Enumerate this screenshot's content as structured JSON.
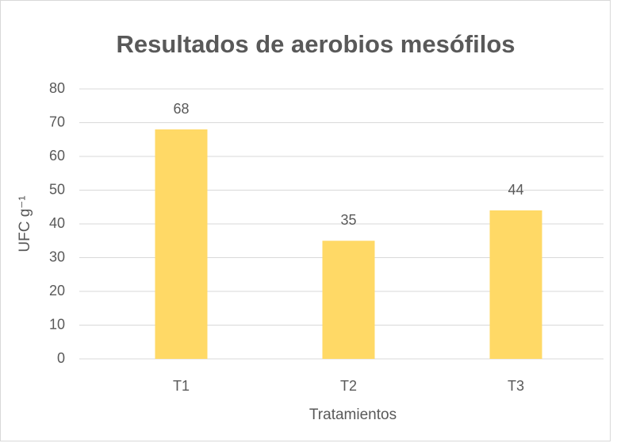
{
  "chart_data": {
    "type": "bar",
    "title": "Resultados de aerobios mesófilos",
    "x_label": "Tratamientos",
    "y_label": "UFC g⁻¹",
    "categories": [
      "T1",
      "T2",
      "T3"
    ],
    "values": [
      68,
      35,
      44
    ],
    "color": "#ffd966",
    "ylim": [
      0,
      80
    ],
    "yticks": [
      0,
      10,
      20,
      30,
      40,
      50,
      60,
      70,
      80
    ],
    "grid": true
  }
}
